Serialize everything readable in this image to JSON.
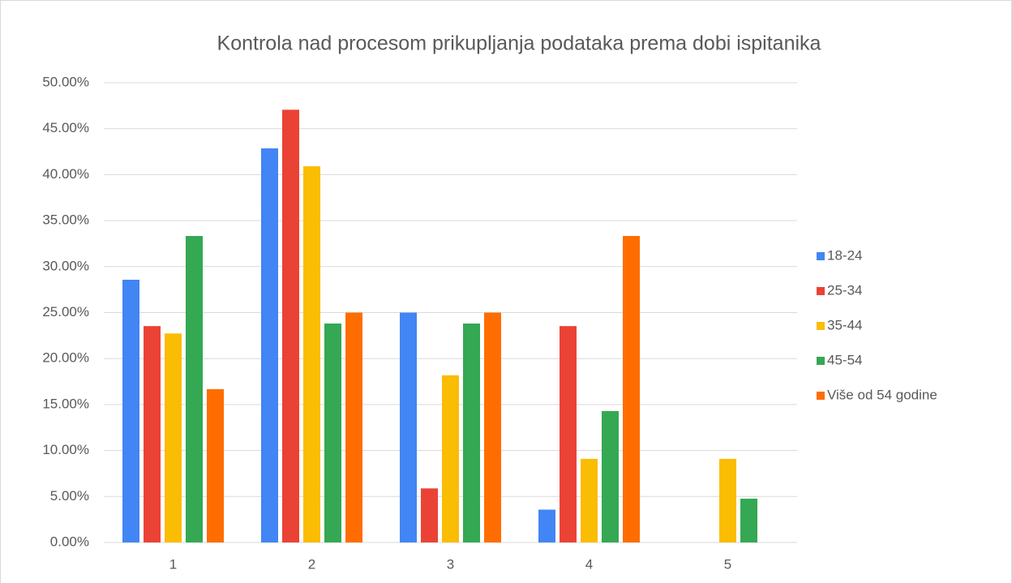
{
  "chart_data": {
    "type": "bar",
    "title": "Kontrola nad procesom prikupljanja podataka prema dobi ispitanika",
    "categories": [
      "1",
      "2",
      "3",
      "4",
      "5"
    ],
    "series": [
      {
        "name": "18-24",
        "color": "#4285f4",
        "values": [
          28.57,
          42.86,
          25,
          3.57,
          0
        ]
      },
      {
        "name": "25-34",
        "color": "#ea4335",
        "values": [
          23.53,
          47.06,
          5.88,
          23.53,
          0
        ]
      },
      {
        "name": "35-44",
        "color": "#fbbc04",
        "values": [
          22.73,
          40.91,
          18.18,
          9.09,
          9.09
        ]
      },
      {
        "name": "45-54",
        "color": "#34a853",
        "values": [
          33.33,
          23.81,
          23.81,
          14.29,
          4.76
        ]
      },
      {
        "name": "Više od 54 godine",
        "color": "#ff6d01",
        "values": [
          16.67,
          25,
          25,
          33.33,
          0
        ]
      }
    ],
    "ylim": [
      0,
      50
    ],
    "yticks": [
      {
        "value": 0,
        "label": "0.00%"
      },
      {
        "value": 5,
        "label": "5.00%"
      },
      {
        "value": 10,
        "label": "10.00%"
      },
      {
        "value": 15,
        "label": "15.00%"
      },
      {
        "value": 20,
        "label": "20.00%"
      },
      {
        "value": 25,
        "label": "25.00%"
      },
      {
        "value": 30,
        "label": "30.00%"
      },
      {
        "value": 35,
        "label": "35.00%"
      },
      {
        "value": 40,
        "label": "40.00%"
      },
      {
        "value": 45,
        "label": "45.00%"
      },
      {
        "value": 50,
        "label": "50.00%"
      }
    ],
    "grid": true,
    "legend": "right"
  }
}
